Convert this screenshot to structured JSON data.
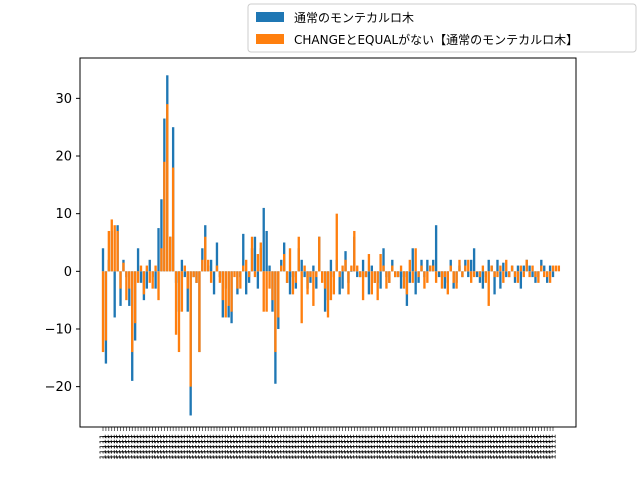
{
  "chart_data": {
    "type": "bar",
    "title": "",
    "xlabel": "",
    "ylabel": "",
    "ylim": [
      -27,
      37
    ],
    "yticks": [
      -20,
      -10,
      0,
      10,
      20,
      30
    ],
    "grid": false,
    "legend_placement": "top-right, outside above plot",
    "x_tick_label": "1",
    "colors": {
      "series_1": "#1f77b4",
      "series_2": "#ff7f0e"
    },
    "series": [
      {
        "name": "通常のモンテカルロ木",
        "values": [
          4,
          -16,
          2,
          7,
          -8,
          8,
          -6,
          2,
          -1,
          -6,
          -19,
          -12,
          4,
          -2,
          -5,
          -3,
          2,
          -1,
          -3,
          7.5,
          12.5,
          26.5,
          34,
          6,
          25,
          -2,
          -7,
          2,
          -1,
          -7,
          -25,
          -1,
          -2,
          -14,
          4,
          8,
          1,
          2,
          -4,
          5,
          -1,
          -8,
          -3,
          -8,
          -9,
          0,
          -4,
          -1,
          6.5,
          -4,
          -2,
          4,
          6,
          -3,
          4,
          11,
          7,
          1,
          -7,
          -19.5,
          -10,
          2,
          5,
          -2,
          -4,
          -1,
          -3,
          4,
          2,
          -1,
          -3,
          -2,
          1,
          -3,
          6,
          0,
          -7,
          -5,
          2,
          -1,
          2,
          -4,
          -3,
          3.5,
          -2,
          0,
          6,
          -1,
          -1,
          2,
          -1,
          -4,
          1,
          -2,
          -2,
          -3,
          4,
          -1,
          -2,
          2,
          -1,
          -1,
          -3,
          -1,
          -6,
          -2,
          4,
          -4,
          -2,
          2,
          -1,
          2,
          1,
          2,
          8,
          -1,
          -1,
          -3,
          -2,
          2,
          -3,
          -2,
          1,
          -1,
          2,
          -1,
          2,
          4,
          -1,
          -2,
          -3,
          -1,
          2,
          1,
          -4,
          2,
          -3,
          1.5,
          -1,
          -1,
          1,
          -2,
          1,
          -3,
          1,
          2,
          1,
          -1,
          -2,
          -1,
          2,
          1,
          -2,
          1,
          -1
        ],
        "description": "blue bars"
      },
      {
        "name": "CHANGEとEQUALがない【通常のモンテカルロ木】",
        "values": [
          -14,
          -12,
          7,
          9,
          8,
          7,
          -3,
          1.5,
          -5,
          -3,
          -14,
          -9,
          -2,
          1,
          -4,
          1,
          -2,
          -3,
          1,
          -5,
          4,
          19,
          29,
          6,
          18,
          -11,
          -14,
          -7,
          1,
          -3,
          -20,
          -1,
          -2,
          -14,
          2,
          6,
          2,
          -2,
          0,
          1,
          -2,
          -5,
          -8,
          -6,
          -7,
          -1,
          -3,
          -3,
          1,
          2,
          -1,
          6,
          -1,
          3,
          5,
          -7,
          -7,
          -3,
          -5,
          -14,
          -8,
          1,
          3,
          -2,
          4,
          -4,
          -2,
          6,
          -9,
          1,
          -4,
          -1,
          -6,
          -1,
          6,
          -2,
          -3,
          -8,
          -5,
          -4,
          10,
          -1,
          1,
          2,
          -4,
          1,
          7,
          1,
          -1,
          -5,
          -1,
          3,
          -4,
          -2,
          -5,
          3,
          1,
          -3,
          -2,
          1,
          -1,
          -1,
          1,
          -3,
          -4,
          2,
          -2,
          4,
          -1,
          1,
          -3,
          -2,
          1,
          1,
          -2,
          0,
          -3,
          -1,
          -4,
          1,
          -2,
          -3,
          2,
          -1,
          1,
          2,
          -2,
          -1,
          0,
          -1,
          1,
          -2,
          -6,
          1,
          -1,
          -1,
          1,
          -2,
          2,
          -1,
          1,
          -1,
          -2,
          1,
          -1,
          2,
          -1,
          1,
          -1,
          -2,
          1,
          -1,
          -1,
          -2,
          1,
          1,
          1
        ]
      }
    ]
  }
}
